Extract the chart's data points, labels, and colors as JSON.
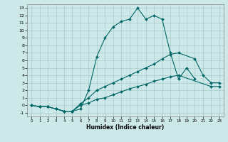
{
  "xlabel": "Humidex (Indice chaleur)",
  "ylabel": "",
  "xlim": [
    -0.5,
    23.5
  ],
  "ylim": [
    -1.5,
    13.5
  ],
  "xticks": [
    0,
    1,
    2,
    3,
    4,
    5,
    6,
    7,
    8,
    9,
    10,
    11,
    12,
    13,
    14,
    15,
    16,
    17,
    18,
    19,
    20,
    21,
    22,
    23
  ],
  "yticks": [
    -1,
    0,
    1,
    2,
    3,
    4,
    5,
    6,
    7,
    8,
    9,
    10,
    11,
    12,
    13
  ],
  "bg_color": "#cce8e8",
  "grid_color": "#aacccc",
  "line_color": "#006666",
  "line1_x": [
    0,
    1,
    2,
    3,
    4,
    5,
    6,
    7,
    8,
    9,
    10,
    11,
    12,
    13,
    14,
    15,
    16,
    17,
    18,
    19,
    20
  ],
  "line1_y": [
    0,
    -0.2,
    -0.2,
    -0.5,
    -0.8,
    -0.8,
    -0.5,
    2.0,
    6.5,
    9.0,
    10.5,
    11.2,
    11.5,
    13.0,
    11.5,
    12.0,
    11.5,
    7.0,
    3.5,
    5.0,
    3.5
  ],
  "line2_x": [
    0,
    1,
    2,
    3,
    4,
    5,
    6,
    7,
    8,
    9,
    10,
    11,
    12,
    13,
    14,
    15,
    16,
    17,
    18,
    20,
    21,
    22,
    23
  ],
  "line2_y": [
    0,
    -0.2,
    -0.2,
    -0.5,
    -0.8,
    -0.8,
    0.2,
    1.0,
    2.0,
    2.5,
    3.0,
    3.5,
    4.0,
    4.5,
    5.0,
    5.5,
    6.2,
    6.8,
    7.0,
    6.2,
    4.0,
    3.0,
    3.0
  ],
  "line3_x": [
    0,
    1,
    2,
    3,
    4,
    5,
    6,
    7,
    8,
    9,
    10,
    11,
    12,
    13,
    14,
    15,
    16,
    17,
    18,
    22,
    23
  ],
  "line3_y": [
    0,
    -0.2,
    -0.2,
    -0.5,
    -0.8,
    -0.8,
    0.0,
    0.3,
    0.8,
    1.0,
    1.4,
    1.8,
    2.2,
    2.5,
    2.8,
    3.2,
    3.5,
    3.8,
    4.0,
    2.5,
    2.5
  ]
}
